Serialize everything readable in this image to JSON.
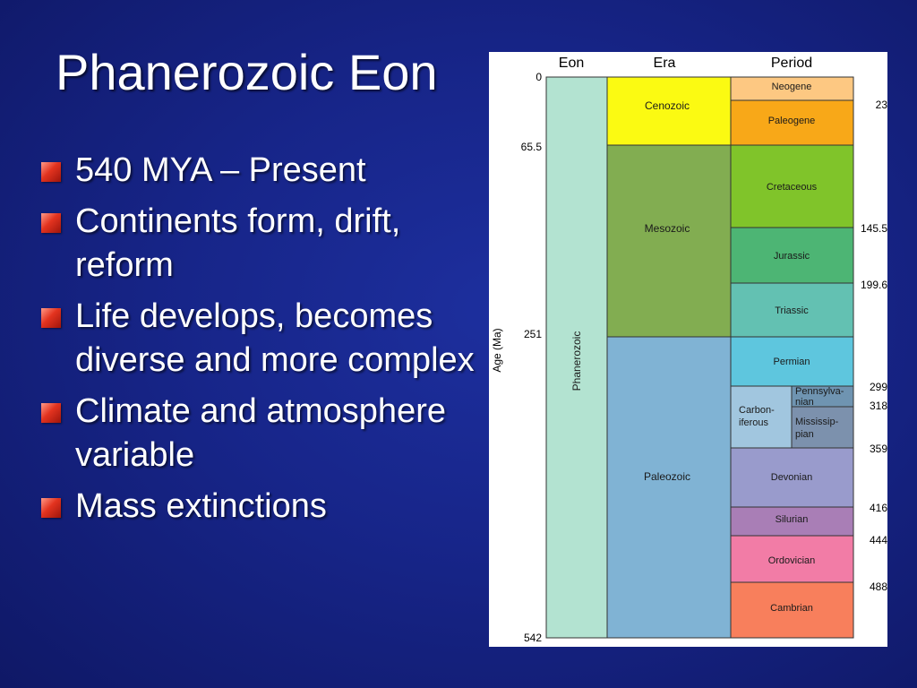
{
  "slide": {
    "title": "Phanerozoic Eon",
    "bullets": [
      {
        "text": "540 MYA – Present"
      },
      {
        "text": "Continents form, drift, reform"
      },
      {
        "text": "Life develops, becomes diverse and more complex"
      },
      {
        "text": "Climate and atmosphere variable"
      },
      {
        "text": "Mass extinctions"
      }
    ]
  },
  "colors": {
    "background": "#172589",
    "bullet_marker": "#e3331f",
    "phanerozoic": "#b3e3d1",
    "cenozoic": "#fbfa12",
    "mesozoic": "#82ad51",
    "paleozoic": "#80b3d4",
    "neogene": "#fdc882",
    "paleogene": "#f8a818",
    "cretaceous": "#80c42a",
    "jurassic": "#4db574",
    "triassic": "#63c1b2",
    "permian": "#5ec6de",
    "carboniferous": "#a1c6df",
    "pennsylvanian": "#6f94b1",
    "mississippian": "#7c91ad",
    "devonian": "#999bcc",
    "silurian": "#a97eb6",
    "ordovician": "#f27ca6",
    "cambrian": "#f87f5c"
  },
  "diagram": {
    "headers": {
      "eon": "Eon",
      "era": "Era",
      "period": "Period"
    },
    "axis_label": "Age (Ma)",
    "left_ages": [
      "0",
      "65.5",
      "251",
      "542"
    ],
    "right_ages": [
      "23",
      "145.5",
      "199.6",
      "299",
      "318",
      "359",
      "416",
      "444",
      "488"
    ],
    "eon": {
      "name": "Phanerozoic"
    },
    "eras": [
      {
        "name": "Cenozoic",
        "start": 0,
        "end": 65.5
      },
      {
        "name": "Mesozoic",
        "start": 65.5,
        "end": 251
      },
      {
        "name": "Paleozoic",
        "start": 251,
        "end": 542
      }
    ],
    "periods": [
      {
        "name": "Neogene",
        "start": 0,
        "end": 23
      },
      {
        "name": "Paleogene",
        "start": 23,
        "end": 65.5
      },
      {
        "name": "Cretaceous",
        "start": 65.5,
        "end": 145.5
      },
      {
        "name": "Jurassic",
        "start": 145.5,
        "end": 199.6
      },
      {
        "name": "Triassic",
        "start": 199.6,
        "end": 251
      },
      {
        "name": "Permian",
        "start": 251,
        "end": 299
      },
      {
        "name_lines": [
          "Carbon-",
          "iferous"
        ],
        "start": 299,
        "end": 359
      },
      {
        "name_lines": [
          "Pennsylva-",
          "nian"
        ],
        "start": 299,
        "end": 318
      },
      {
        "name_lines": [
          "Mississip-",
          "pian"
        ],
        "start": 318,
        "end": 359
      },
      {
        "name": "Devonian",
        "start": 359,
        "end": 416
      },
      {
        "name": "Silurian",
        "start": 416,
        "end": 444
      },
      {
        "name": "Ordovician",
        "start": 444,
        "end": 488
      },
      {
        "name": "Cambrian",
        "start": 488,
        "end": 542
      }
    ]
  }
}
